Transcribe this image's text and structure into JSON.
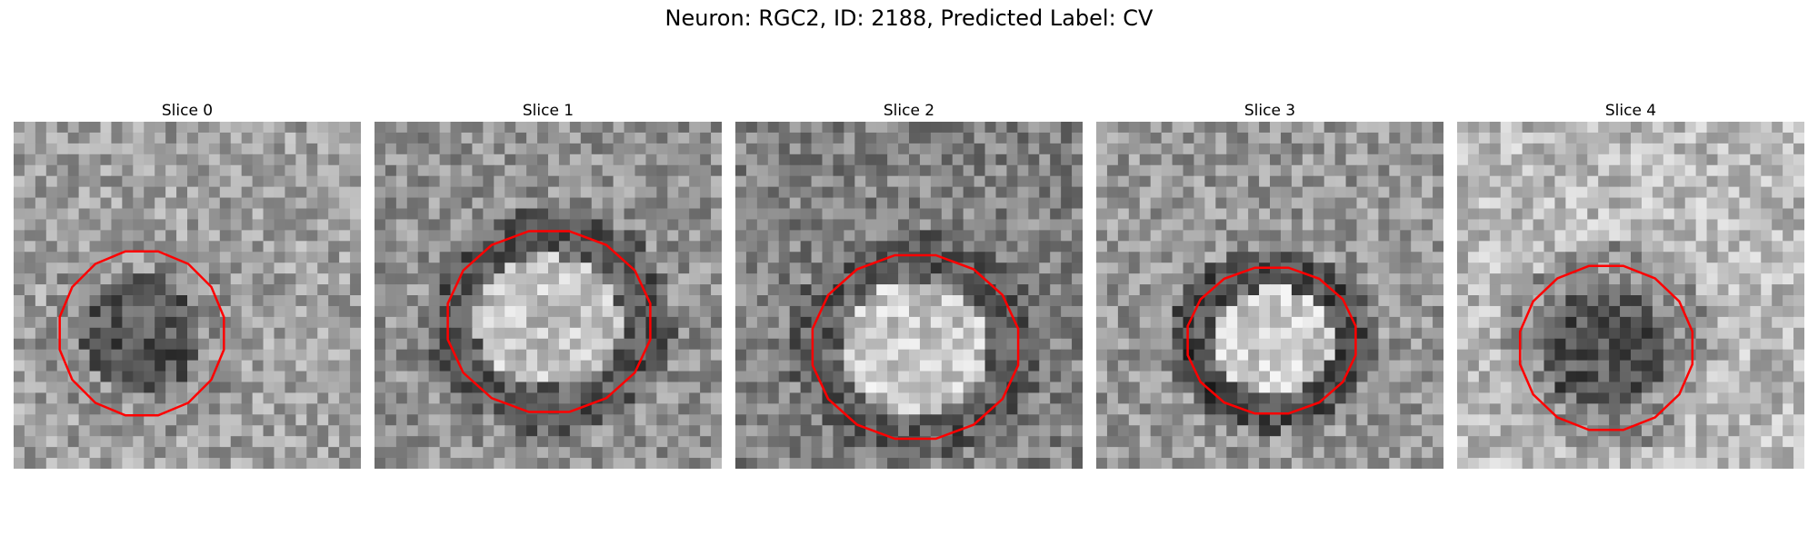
{
  "figure": {
    "title": "Neuron: RGC2, ID: 2188, Predicted Label: CV",
    "contour_color": "#ff0000",
    "colormap": "grayscale",
    "panels": [
      {
        "title": "Slice 0"
      },
      {
        "title": "Slice 1"
      },
      {
        "title": "Slice 2"
      },
      {
        "title": "Slice 3"
      },
      {
        "title": "Slice 4"
      }
    ]
  }
}
